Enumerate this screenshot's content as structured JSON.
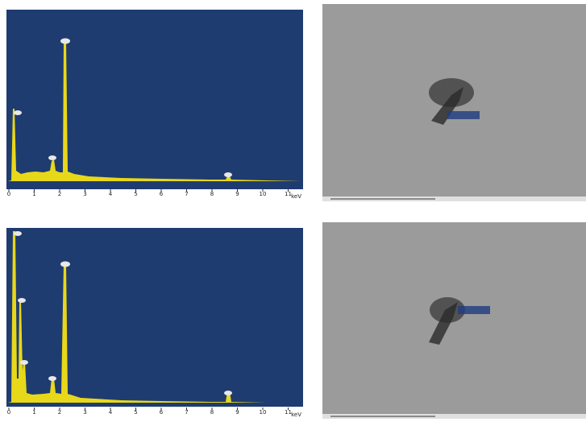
{
  "panels": [
    {
      "x_ticks": [
        "0",
        "1",
        "2",
        "3",
        "4",
        "5",
        "6",
        "7",
        "8",
        "9",
        "10",
        "11"
      ],
      "x_unit": "keV"
    },
    {
      "x_ticks": [
        "0",
        "1",
        "2",
        "3",
        "4",
        "5",
        "6",
        "7",
        "8",
        "9",
        "10",
        "11"
      ],
      "x_unit": "keV"
    }
  ]
}
